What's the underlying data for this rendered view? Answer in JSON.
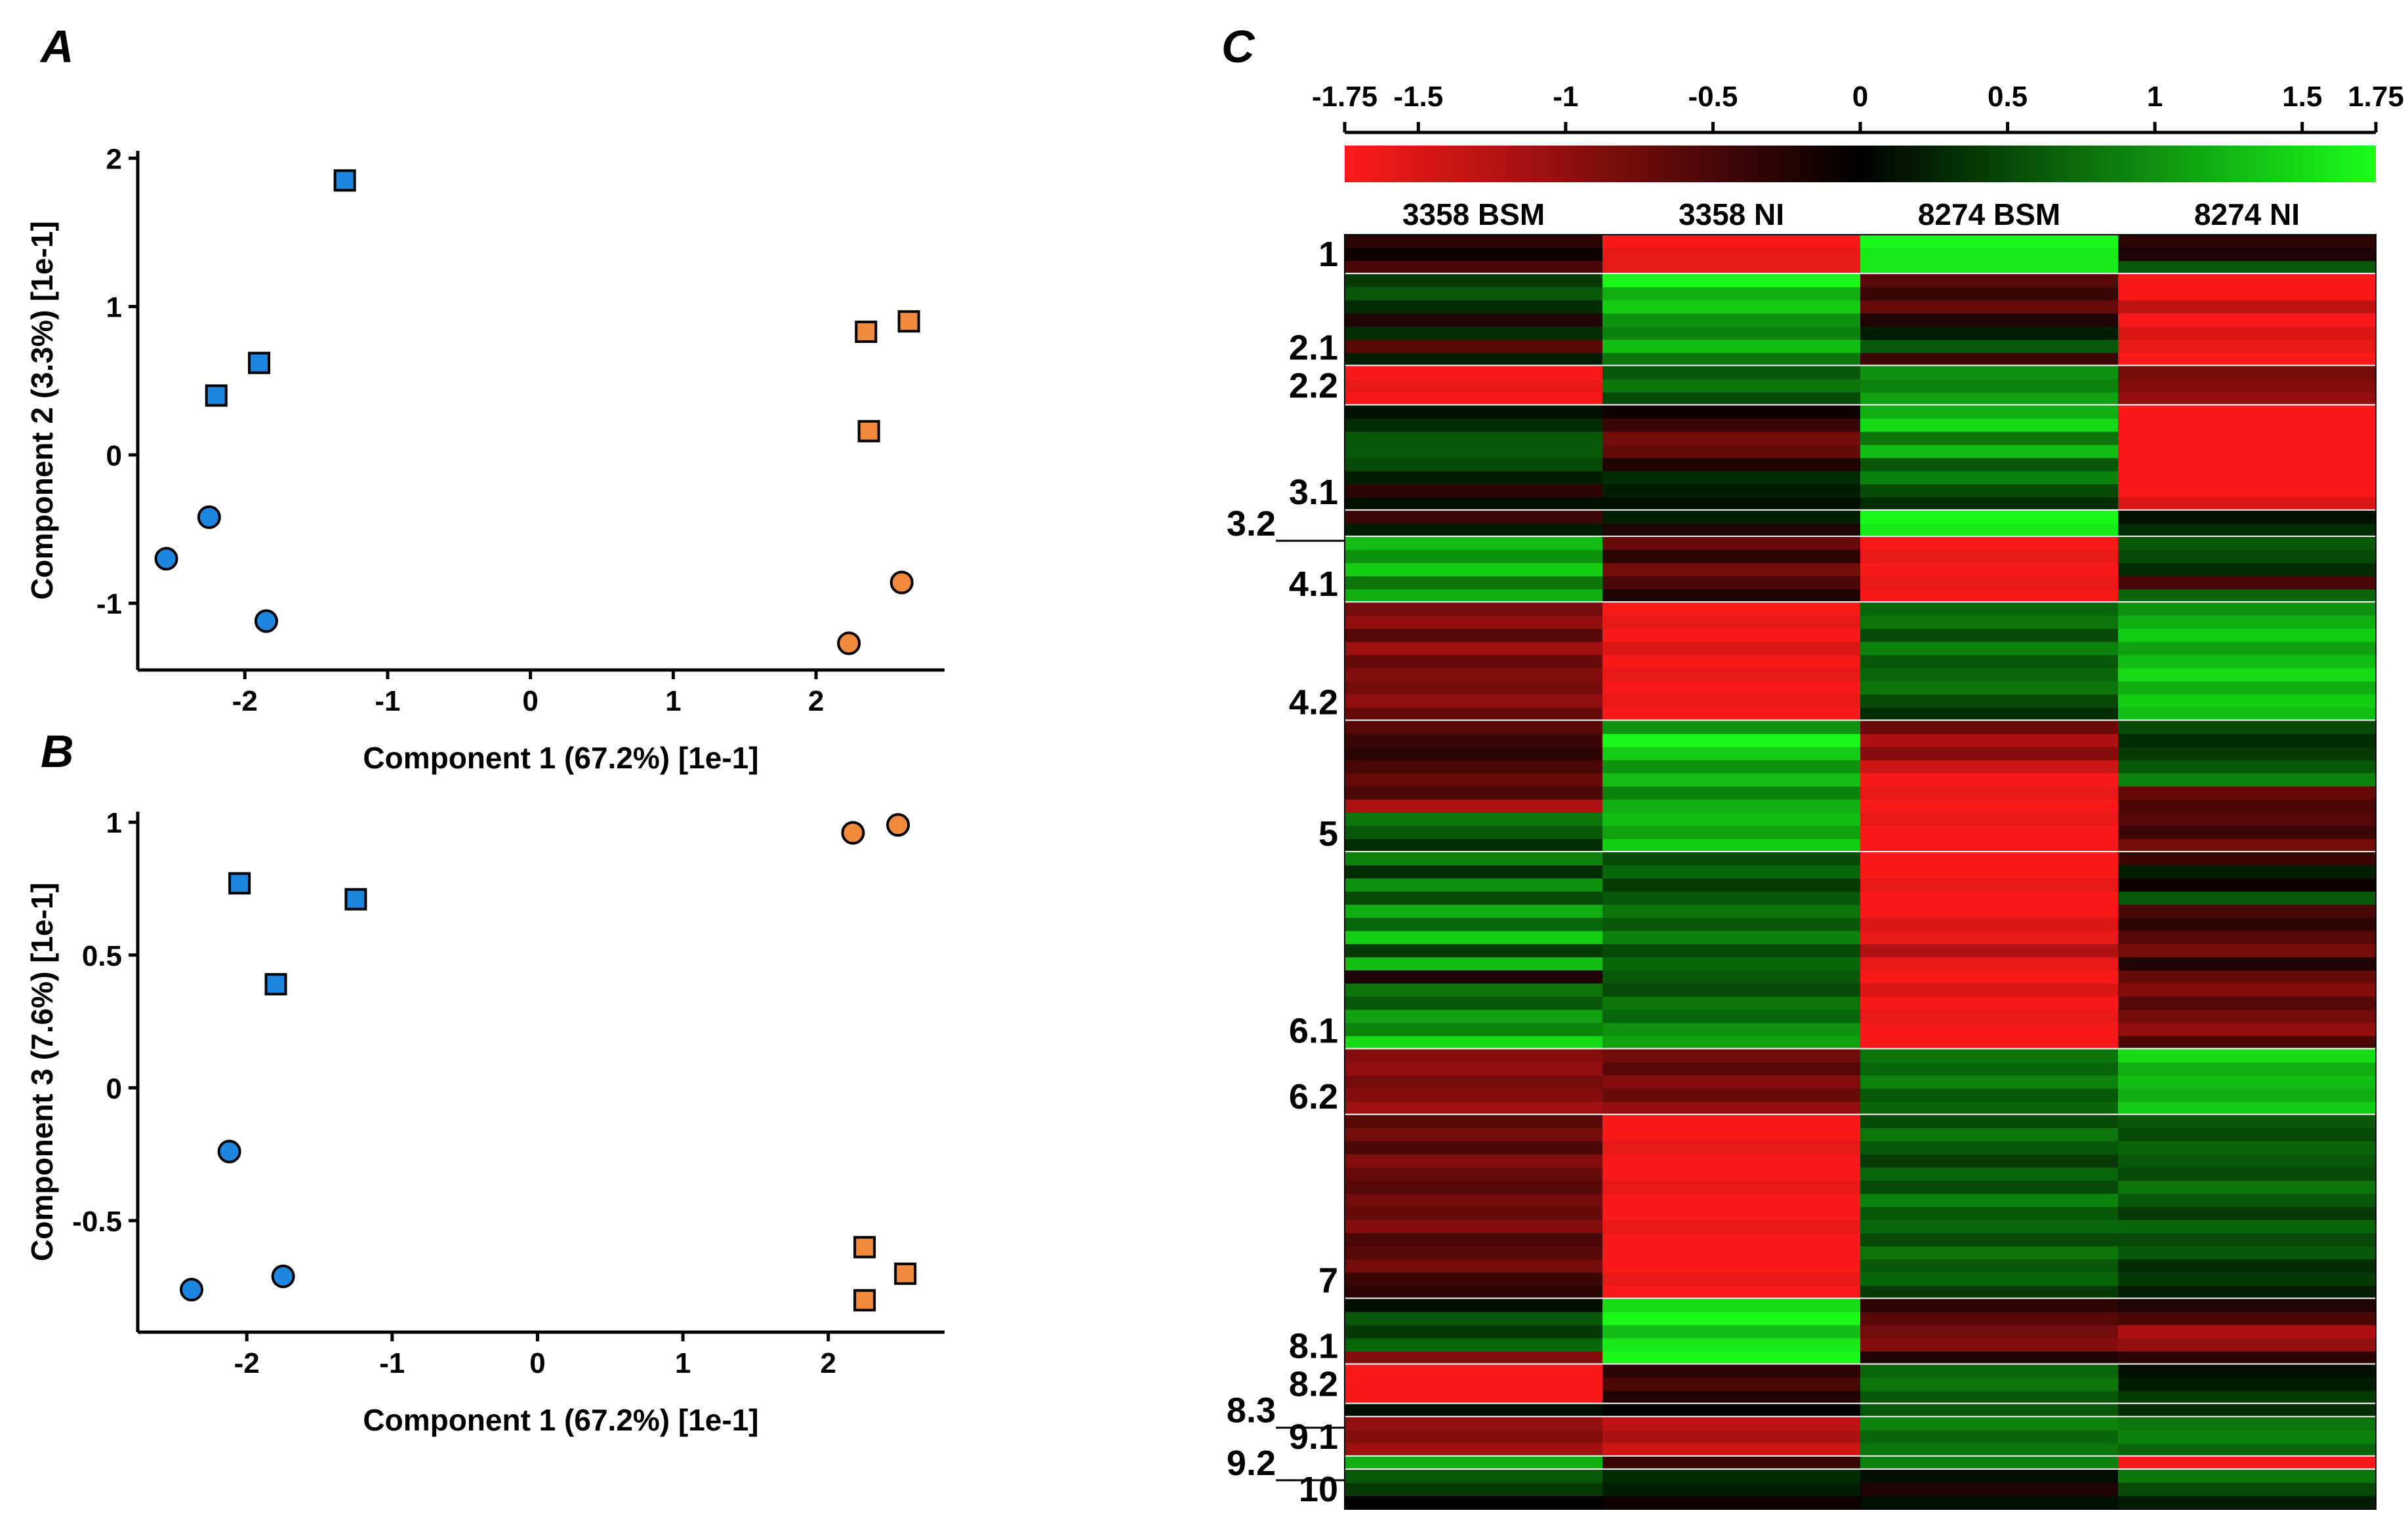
{
  "panels": {
    "a": "A",
    "b": "B",
    "c": "C"
  },
  "colors": {
    "blue": "#1f86e0",
    "orange": "#f08a3c",
    "heat_low": "#ff1a1a",
    "heat_mid": "#000000",
    "heat_high": "#1aff1a"
  },
  "chart_data": [
    {
      "id": "A",
      "type": "scatter",
      "title": "",
      "xlabel": "Component 1 (67.2%) [1e-1]",
      "ylabel": "Component 2 (3.3%) [1e-1]",
      "xlim": [
        -2.75,
        2.9
      ],
      "ylim": [
        -1.45,
        2.05
      ],
      "xticks": [
        -2,
        -1,
        0,
        1,
        2
      ],
      "yticks": [
        -1,
        0,
        1,
        2
      ],
      "series": [
        {
          "name": "blue-squares",
          "marker": "square",
          "color": "blue",
          "points": [
            [
              -1.3,
              1.85
            ],
            [
              -1.9,
              0.62
            ],
            [
              -2.2,
              0.4
            ]
          ]
        },
        {
          "name": "blue-circles",
          "marker": "circle",
          "color": "blue",
          "points": [
            [
              -2.25,
              -0.42
            ],
            [
              -2.55,
              -0.7
            ],
            [
              -1.85,
              -1.12
            ]
          ]
        },
        {
          "name": "orange-squares",
          "marker": "square",
          "color": "orange",
          "points": [
            [
              2.35,
              0.83
            ],
            [
              2.65,
              0.9
            ],
            [
              2.37,
              0.16
            ]
          ]
        },
        {
          "name": "orange-circles",
          "marker": "circle",
          "color": "orange",
          "points": [
            [
              2.6,
              -0.86
            ],
            [
              2.23,
              -1.27
            ]
          ]
        }
      ]
    },
    {
      "id": "B",
      "type": "scatter",
      "title": "",
      "xlabel": "Component 1 (67.2%) [1e-1]",
      "ylabel": "Component 3 (7.6%) [1e-1]",
      "xlim": [
        -2.75,
        2.8
      ],
      "ylim": [
        -0.92,
        1.04
      ],
      "xticks": [
        -2,
        -1,
        0,
        1,
        2
      ],
      "yticks": [
        -0.5,
        0,
        0.5,
        1
      ],
      "ytick_labels": [
        "-0.5",
        "0",
        "0.5",
        "1"
      ],
      "series": [
        {
          "name": "blue-squares",
          "marker": "square",
          "color": "blue",
          "points": [
            [
              -2.05,
              0.77
            ],
            [
              -1.25,
              0.71
            ],
            [
              -1.8,
              0.39
            ]
          ]
        },
        {
          "name": "blue-circles",
          "marker": "circle",
          "color": "blue",
          "points": [
            [
              -2.12,
              -0.24
            ],
            [
              -1.75,
              -0.71
            ],
            [
              -2.38,
              -0.76
            ]
          ]
        },
        {
          "name": "orange-squares",
          "marker": "square",
          "color": "orange",
          "points": [
            [
              2.25,
              -0.6
            ],
            [
              2.53,
              -0.7
            ],
            [
              2.25,
              -0.8
            ]
          ]
        },
        {
          "name": "orange-circles",
          "marker": "circle",
          "color": "orange",
          "points": [
            [
              2.17,
              0.96
            ],
            [
              2.48,
              0.99
            ]
          ]
        }
      ]
    },
    {
      "id": "C",
      "type": "heatmap",
      "colorbar": {
        "range": [
          -1.75,
          1.75
        ],
        "ticks": [
          -1.75,
          -1.5,
          -1,
          -0.5,
          0,
          0.5,
          1,
          1.5,
          1.75
        ],
        "tick_labels": [
          "-1.75",
          "-1.5",
          "-1",
          "-0.5",
          "0",
          "0.5",
          "1",
          "1.5",
          "1.75"
        ]
      },
      "columns": [
        "3358 BSM",
        "3358 NI",
        "8274 BSM",
        "8274 NI"
      ],
      "clusters": [
        {
          "label": "1",
          "rows": [
            [
              -0.3,
              -1.7,
              1.7,
              -0.3
            ],
            [
              -0.1,
              -1.6,
              1.6,
              -0.2
            ],
            [
              -0.5,
              -1.6,
              1.6,
              0.6
            ]
          ]
        },
        {
          "label": "2.1",
          "rows": [
            [
              0.4,
              1.7,
              -0.6,
              -1.7
            ],
            [
              0.6,
              1.2,
              -0.4,
              -1.7
            ],
            [
              0.3,
              1.4,
              -0.7,
              -1.3
            ],
            [
              -0.2,
              1.0,
              -0.2,
              -1.7
            ],
            [
              0.3,
              0.9,
              0.2,
              -1.5
            ],
            [
              -0.6,
              1.3,
              0.6,
              -1.6
            ],
            [
              0.2,
              0.8,
              -0.4,
              -1.7
            ]
          ]
        },
        {
          "label": "2.2",
          "rows": [
            [
              -1.7,
              0.6,
              1.0,
              -0.8
            ],
            [
              -1.6,
              0.8,
              0.9,
              -0.9
            ],
            [
              -1.7,
              0.5,
              1.1,
              -1.0
            ]
          ]
        },
        {
          "label": "3.1",
          "rows": [
            [
              0.1,
              -0.1,
              1.2,
              -1.7
            ],
            [
              0.3,
              -0.4,
              1.5,
              -1.7
            ],
            [
              0.6,
              -0.8,
              0.8,
              -1.7
            ],
            [
              0.6,
              -0.7,
              1.3,
              -1.7
            ],
            [
              0.5,
              -0.2,
              0.6,
              -1.7
            ],
            [
              0.2,
              0.3,
              0.9,
              -1.7
            ],
            [
              -0.3,
              0.2,
              0.5,
              -1.7
            ],
            [
              0.1,
              0.1,
              0.3,
              -1.5
            ]
          ]
        },
        {
          "label": "3.2",
          "rows": [
            [
              -0.4,
              0.2,
              1.7,
              0.1
            ],
            [
              0.2,
              -0.2,
              1.6,
              0.3
            ]
          ]
        },
        {
          "label": "4.1",
          "rows": [
            [
              1.3,
              -0.7,
              -1.7,
              0.6
            ],
            [
              1.0,
              -0.3,
              -1.6,
              0.5
            ],
            [
              1.4,
              -0.8,
              -1.7,
              0.3
            ],
            [
              0.8,
              -0.5,
              -1.6,
              -0.5
            ],
            [
              1.2,
              -0.2,
              -1.7,
              0.7
            ]
          ]
        },
        {
          "label": "4.2",
          "rows": [
            [
              -0.8,
              -1.7,
              0.7,
              1.0
            ],
            [
              -1.0,
              -1.6,
              0.8,
              1.2
            ],
            [
              -0.6,
              -1.7,
              0.5,
              1.4
            ],
            [
              -1.1,
              -1.5,
              0.9,
              1.1
            ],
            [
              -0.7,
              -1.7,
              0.6,
              1.3
            ],
            [
              -0.9,
              -1.6,
              0.7,
              1.5
            ],
            [
              -0.8,
              -1.7,
              0.8,
              1.2
            ],
            [
              -1.0,
              -1.6,
              0.5,
              1.4
            ],
            [
              -0.7,
              -1.7,
              0.3,
              1.3
            ]
          ]
        },
        {
          "label": "5",
          "rows": [
            [
              -0.6,
              1.0,
              -0.7,
              0.5
            ],
            [
              -0.4,
              1.7,
              -1.2,
              0.3
            ],
            [
              -0.3,
              1.4,
              -0.9,
              0.4
            ],
            [
              -0.5,
              1.0,
              -1.4,
              0.6
            ],
            [
              -0.7,
              1.3,
              -1.7,
              0.9
            ],
            [
              -0.5,
              0.9,
              -1.6,
              -0.7
            ],
            [
              -1.2,
              1.2,
              -1.7,
              -0.5
            ],
            [
              0.8,
              1.3,
              -1.6,
              -0.6
            ],
            [
              0.6,
              1.1,
              -1.7,
              -0.4
            ],
            [
              0.3,
              1.4,
              -1.7,
              -0.8
            ]
          ]
        },
        {
          "label": "6.1",
          "rows": [
            [
              0.9,
              0.5,
              -1.7,
              -0.4
            ],
            [
              0.3,
              0.7,
              -1.7,
              0.2
            ],
            [
              1.0,
              0.4,
              -1.6,
              -0.1
            ],
            [
              0.5,
              0.6,
              -1.7,
              0.6
            ],
            [
              1.2,
              0.8,
              -1.7,
              -0.5
            ],
            [
              0.7,
              0.6,
              -1.5,
              -0.3
            ],
            [
              1.4,
              0.9,
              -1.6,
              -0.6
            ],
            [
              0.4,
              0.5,
              -1.2,
              -0.8
            ],
            [
              1.3,
              0.7,
              -1.6,
              -0.2
            ],
            [
              -0.2,
              0.6,
              -1.7,
              -0.7
            ],
            [
              0.8,
              0.5,
              -1.5,
              -0.9
            ],
            [
              0.6,
              0.8,
              -1.7,
              -0.6
            ],
            [
              1.1,
              0.7,
              -1.6,
              -0.8
            ],
            [
              0.9,
              1.0,
              -1.7,
              -1.0
            ],
            [
              1.5,
              1.1,
              -1.7,
              -0.5
            ]
          ]
        },
        {
          "label": "6.2",
          "rows": [
            [
              -0.9,
              -0.8,
              0.8,
              1.5
            ],
            [
              -1.0,
              -0.6,
              0.7,
              1.2
            ],
            [
              -0.8,
              -0.9,
              0.9,
              1.3
            ],
            [
              -0.9,
              -0.7,
              0.6,
              1.2
            ],
            [
              -1.1,
              -1.0,
              0.7,
              1.4
            ]
          ]
        },
        {
          "label": "7",
          "rows": [
            [
              -0.6,
              -1.7,
              0.5,
              0.6
            ],
            [
              -0.8,
              -1.7,
              0.8,
              0.5
            ],
            [
              -0.5,
              -1.6,
              0.6,
              0.7
            ],
            [
              -0.9,
              -1.7,
              0.4,
              0.6
            ],
            [
              -0.7,
              -1.7,
              0.7,
              0.5
            ],
            [
              -0.6,
              -1.6,
              0.5,
              0.8
            ],
            [
              -0.8,
              -1.7,
              0.9,
              0.6
            ],
            [
              -0.7,
              -1.7,
              0.6,
              0.4
            ],
            [
              -0.9,
              -1.6,
              0.7,
              0.7
            ],
            [
              -0.5,
              -1.7,
              0.5,
              0.5
            ],
            [
              -0.6,
              -1.7,
              0.8,
              0.6
            ],
            [
              -0.8,
              -1.7,
              0.6,
              0.3
            ],
            [
              -0.4,
              -1.6,
              0.7,
              0.4
            ],
            [
              -0.3,
              -1.7,
              0.4,
              0.2
            ]
          ]
        },
        {
          "label": "8.1",
          "rows": [
            [
              0.1,
              1.5,
              -0.3,
              -0.2
            ],
            [
              0.6,
              1.7,
              -0.6,
              -0.5
            ],
            [
              0.4,
              1.3,
              -0.8,
              -1.2
            ],
            [
              0.7,
              1.6,
              -0.9,
              -1.0
            ],
            [
              -0.9,
              1.7,
              -0.2,
              -0.3
            ]
          ]
        },
        {
          "label": "8.2",
          "rows": [
            [
              -1.7,
              -0.3,
              0.7,
              0.1
            ],
            [
              -1.7,
              -0.5,
              0.8,
              0.2
            ],
            [
              -1.7,
              -0.2,
              0.6,
              0.4
            ]
          ]
        },
        {
          "label": "8.3",
          "rows": [
            [
              0.1,
              0.0,
              0.6,
              0.3
            ]
          ]
        },
        {
          "label": "9.1",
          "rows": [
            [
              -1.0,
              -1.3,
              0.9,
              0.8
            ],
            [
              -0.9,
              -1.2,
              0.7,
              0.9
            ],
            [
              -1.1,
              -1.4,
              0.8,
              0.7
            ]
          ]
        },
        {
          "label": "9.2",
          "rows": [
            [
              1.2,
              -0.4,
              0.9,
              -1.7
            ]
          ]
        },
        {
          "label": "10",
          "rows": [
            [
              0.6,
              0.3,
              0.1,
              0.8
            ],
            [
              0.4,
              0.2,
              -0.2,
              0.5
            ],
            [
              0.0,
              -0.1,
              0.1,
              0.2
            ]
          ]
        }
      ]
    }
  ]
}
